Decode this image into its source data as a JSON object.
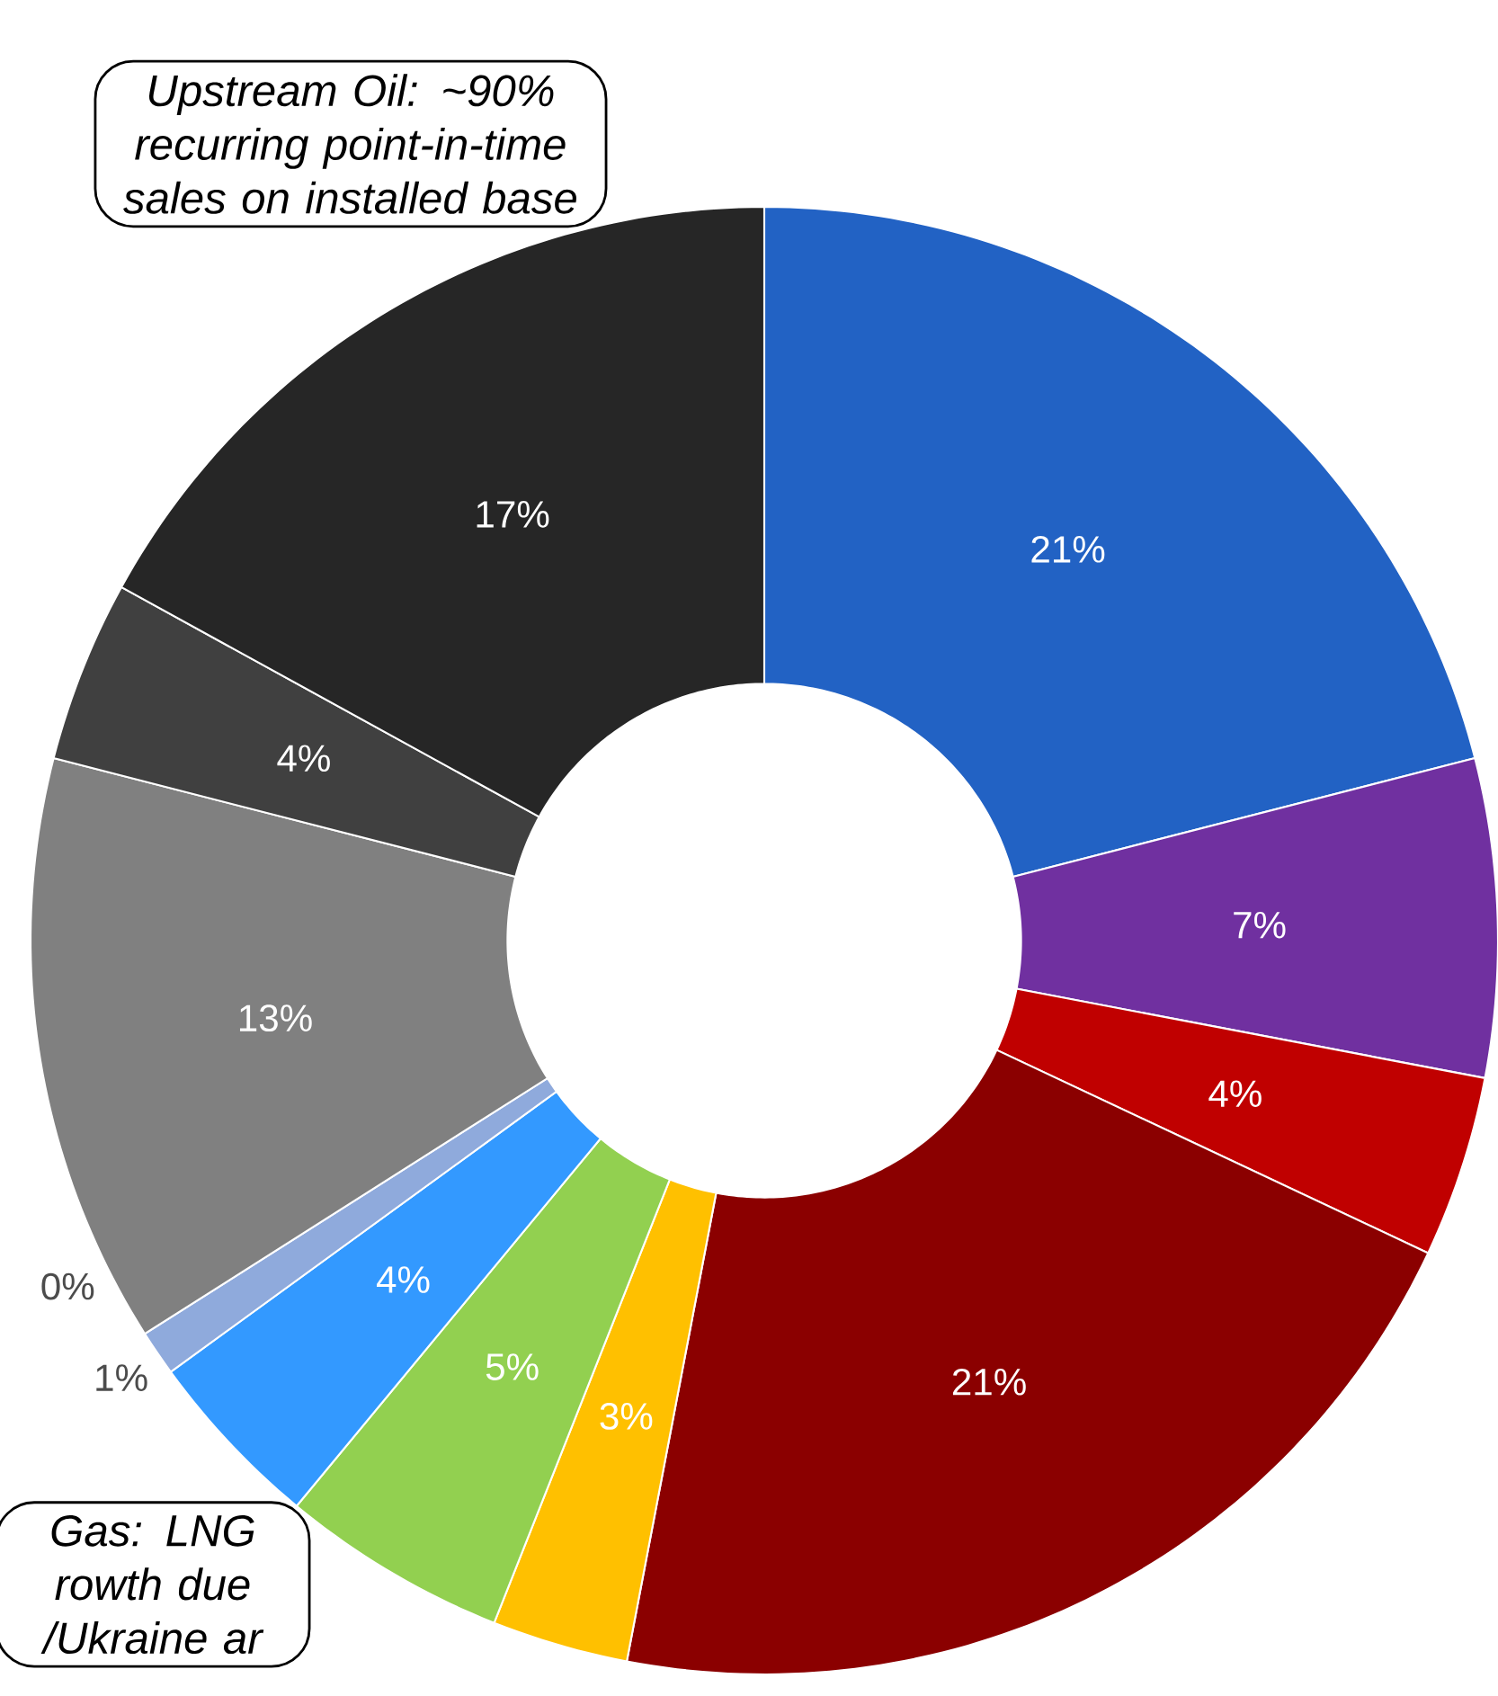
{
  "chart_data": {
    "type": "donut",
    "categories": [
      null,
      null,
      null,
      null,
      null,
      null,
      null,
      null,
      null,
      null,
      null,
      null
    ],
    "values": [
      21,
      7,
      4,
      21,
      3,
      5,
      4,
      1,
      0,
      13,
      4,
      17
    ],
    "colors": [
      "#2262c4",
      "#7030a0",
      "#c00000",
      "#8b0000",
      "#ffc000",
      "#92d050",
      "#3399ff",
      "#8faadc",
      "#8faadc",
      "#808080",
      "#404040",
      "#262626"
    ],
    "value_labels": [
      "21%",
      "7%",
      "4%",
      "21%",
      "3%",
      "5%",
      "4%",
      "1%",
      "0%",
      "13%",
      "4%",
      "17%"
    ],
    "annotations": [
      "Upstream Oil: ~90% recurring point-in-time sales on installed base",
      "Gas: LNG rowth due /Ukraine ar"
    ]
  }
}
